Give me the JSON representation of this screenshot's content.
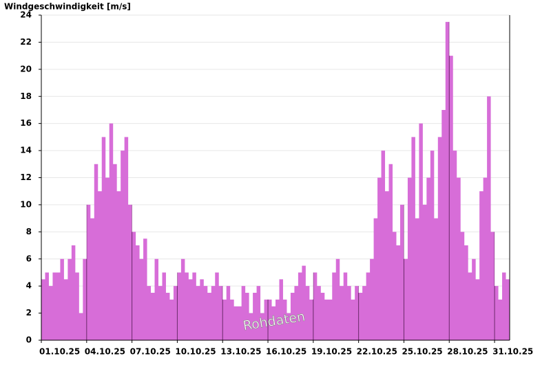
{
  "chart_data": {
    "type": "area",
    "title": "Windgeschwindigkeit [m/s]",
    "annotation": "Rohdaten",
    "color": "#d76dd8",
    "xlim": [
      0,
      31
    ],
    "ylim": [
      0,
      24
    ],
    "yticks": [
      0,
      2,
      4,
      6,
      8,
      10,
      12,
      14,
      16,
      18,
      20,
      22,
      24
    ],
    "xticks": [
      {
        "value": 0,
        "label": "01.10.25"
      },
      {
        "value": 3,
        "label": "04.10.25"
      },
      {
        "value": 6,
        "label": "07.10.25"
      },
      {
        "value": 9,
        "label": "10.10.25"
      },
      {
        "value": 12,
        "label": "13.10.25"
      },
      {
        "value": 15,
        "label": "16.10.25"
      },
      {
        "value": 18,
        "label": "19.10.25"
      },
      {
        "value": 21,
        "label": "22.10.25"
      },
      {
        "value": 24,
        "label": "25.10.25"
      },
      {
        "value": 27,
        "label": "28.10.25"
      },
      {
        "value": 30,
        "label": "31.10.25"
      }
    ],
    "grid": true,
    "x": [
      0,
      0.25,
      0.5,
      0.75,
      1,
      1.25,
      1.5,
      1.75,
      2,
      2.25,
      2.5,
      2.75,
      3,
      3.25,
      3.5,
      3.75,
      4,
      4.25,
      4.5,
      4.75,
      5,
      5.25,
      5.5,
      5.75,
      6,
      6.25,
      6.5,
      6.75,
      7,
      7.25,
      7.5,
      7.75,
      8,
      8.25,
      8.5,
      8.75,
      9,
      9.25,
      9.5,
      9.75,
      10,
      10.25,
      10.5,
      10.75,
      11,
      11.25,
      11.5,
      11.75,
      12,
      12.25,
      12.5,
      12.75,
      13,
      13.25,
      13.5,
      13.75,
      14,
      14.25,
      14.5,
      14.75,
      15,
      15.25,
      15.5,
      15.75,
      16,
      16.25,
      16.5,
      16.75,
      17,
      17.25,
      17.5,
      17.75,
      18,
      18.25,
      18.5,
      18.75,
      19,
      19.25,
      19.5,
      19.75,
      20,
      20.25,
      20.5,
      20.75,
      21,
      21.25,
      21.5,
      21.75,
      22,
      22.25,
      22.5,
      22.75,
      23,
      23.25,
      23.5,
      23.75,
      24,
      24.25,
      24.5,
      24.75,
      25,
      25.25,
      25.5,
      25.75,
      26,
      26.25,
      26.5,
      26.75,
      27,
      27.25,
      27.5,
      27.75,
      28,
      28.25,
      28.5,
      28.75,
      29,
      29.25,
      29.5,
      29.75,
      30,
      30.25,
      30.5,
      30.75
    ],
    "values": [
      4.5,
      5,
      4,
      5,
      5,
      6,
      4.5,
      6,
      7,
      5,
      2,
      6,
      10,
      9,
      13,
      11,
      15,
      12,
      16,
      13,
      11,
      14,
      15,
      10,
      8,
      7,
      6,
      7.5,
      4,
      3.5,
      6,
      4,
      5,
      3.5,
      3,
      4,
      5,
      6,
      5,
      4.5,
      5,
      4,
      4.5,
      4,
      3.5,
      4,
      5,
      4,
      3,
      4,
      3,
      2.5,
      2.5,
      4,
      3.5,
      2,
      3.5,
      4,
      2,
      3,
      3,
      2.5,
      3,
      4.5,
      3,
      2,
      3.5,
      4,
      5,
      5.5,
      4,
      3,
      5,
      4,
      3.5,
      3,
      3,
      5,
      6,
      4,
      5,
      4,
      3,
      4,
      3.5,
      4,
      5,
      6,
      9,
      12,
      14,
      11,
      13,
      8,
      7,
      10,
      6,
      12,
      15,
      9,
      16,
      10,
      12,
      14,
      9,
      15,
      17,
      23.5,
      21,
      14,
      12,
      8,
      7,
      5,
      6,
      4.5,
      11,
      12,
      18,
      8,
      4,
      3,
      5,
      4.5
    ]
  }
}
